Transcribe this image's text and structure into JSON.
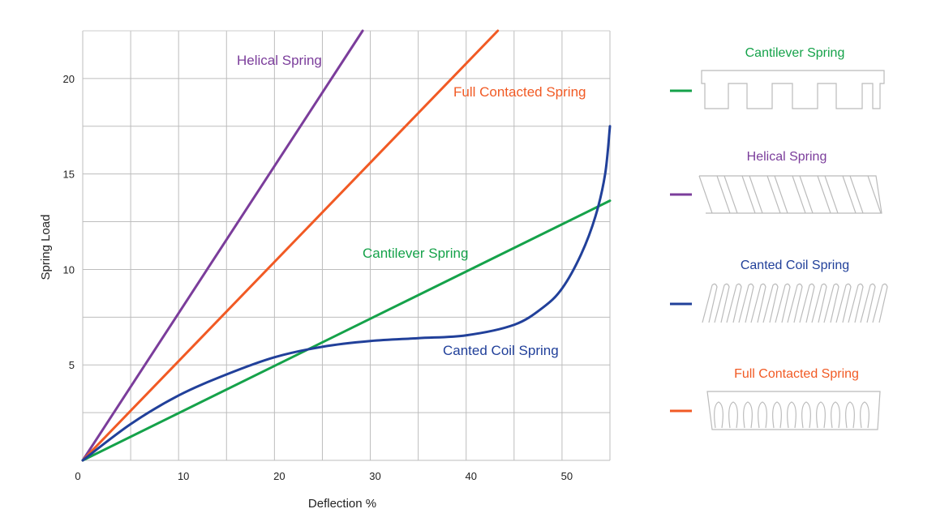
{
  "chart_data": {
    "type": "line",
    "title": "",
    "xlabel": "Deflection %",
    "ylabel": "Spring Load",
    "xlim": [
      0,
      55
    ],
    "ylim": [
      0,
      22.5
    ],
    "x_ticks": [
      0,
      10,
      20,
      30,
      40,
      50
    ],
    "y_ticks": [
      5,
      10,
      15,
      20
    ],
    "grid": true,
    "x_grid_step": 5,
    "y_grid_step": 2.5,
    "legend_placement": "right",
    "series": [
      {
        "name": "Helical Spring",
        "color": "#7b3d9b",
        "x": [
          0,
          29.2
        ],
        "y": [
          0,
          22.5
        ]
      },
      {
        "name": "Full Contacted Spring",
        "color": "#f15a24",
        "x": [
          0,
          43.3
        ],
        "y": [
          0,
          22.5
        ]
      },
      {
        "name": "Cantilever Spring",
        "color": "#15a24a",
        "x": [
          0,
          55
        ],
        "y": [
          0,
          13.6
        ]
      },
      {
        "name": "Canted Coil Spring",
        "color": "#21409a",
        "x": [
          0,
          5,
          10,
          15,
          20,
          25,
          30,
          35,
          40,
          45,
          48,
          50,
          52,
          53.5,
          54.5,
          55
        ],
        "y": [
          0,
          1.9,
          3.4,
          4.5,
          5.4,
          5.95,
          6.25,
          6.4,
          6.55,
          7.1,
          8.0,
          9.0,
          10.8,
          12.8,
          15.0,
          17.5
        ]
      }
    ],
    "annotations": [
      "Helical Spring",
      "Full Contacted Spring",
      "Cantilever Spring",
      "Canted Coil Spring"
    ]
  },
  "legend": [
    {
      "label": "Cantilever Spring",
      "color": "#15a24a",
      "icon": "cantilever-spring-icon"
    },
    {
      "label": "Helical Spring",
      "color": "#7b3d9b",
      "icon": "helical-spring-icon"
    },
    {
      "label": "Canted Coil Spring",
      "color": "#21409a",
      "icon": "canted-coil-spring-icon"
    },
    {
      "label": "Full Contacted Spring",
      "color": "#f15a24",
      "icon": "full-contacted-spring-icon"
    }
  ]
}
